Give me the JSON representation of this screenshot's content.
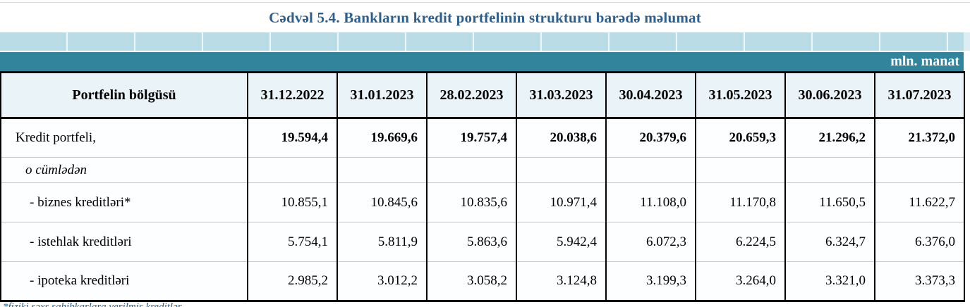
{
  "title": "Cədvəl 5.4. Bankların kredit portfelinin strukturu barədə məlumat",
  "unit_label": "mln. manat",
  "table": {
    "header_label": "Portfelin bölgüsü",
    "columns": [
      "31.12.2022",
      "31.01.2023",
      "28.02.2023",
      "31.03.2023",
      "30.04.2023",
      "31.05.2023",
      "30.06.2023",
      "31.07.2023"
    ],
    "rows": [
      {
        "label": "Kredit portfeli,",
        "style": "total",
        "values": [
          "19.594,4",
          "19.669,6",
          "19.757,4",
          "20.038,6",
          "20.379,6",
          "20.659,3",
          "21.296,2",
          "21.372,0"
        ]
      },
      {
        "label": "o cümlədən",
        "style": "subheading",
        "values": [
          "",
          "",
          "",
          "",
          "",
          "",
          "",
          ""
        ]
      },
      {
        "label": "- biznes kreditləri*",
        "style": "item",
        "values": [
          "10.855,1",
          "10.845,6",
          "10.835,6",
          "10.971,4",
          "11.108,0",
          "11.170,8",
          "11.650,5",
          "11.622,7"
        ]
      },
      {
        "label": "- istehlak kreditləri",
        "style": "item",
        "values": [
          "5.754,1",
          "5.811,9",
          "5.863,6",
          "5.942,4",
          "6.072,3",
          "6.224,5",
          "6.324,7",
          "6.376,0"
        ]
      },
      {
        "label": "- ipoteka kreditləri",
        "style": "item",
        "values": [
          "2.985,2",
          "3.012,2",
          "3.058,2",
          "3.124,8",
          "3.199,3",
          "3.264,0",
          "3.321,0",
          "3.373,3"
        ]
      }
    ]
  },
  "footnote": "*fiziki şəxs sahibkarlara verilmiş kreditlər",
  "colors": {
    "accent_teal": "#31849b",
    "band_light_blue": "#b9dce7",
    "band_light_blue_faded": "#dcedf3",
    "header_bg": "#eaf4f8",
    "title_blue": "#2d5f8e"
  }
}
